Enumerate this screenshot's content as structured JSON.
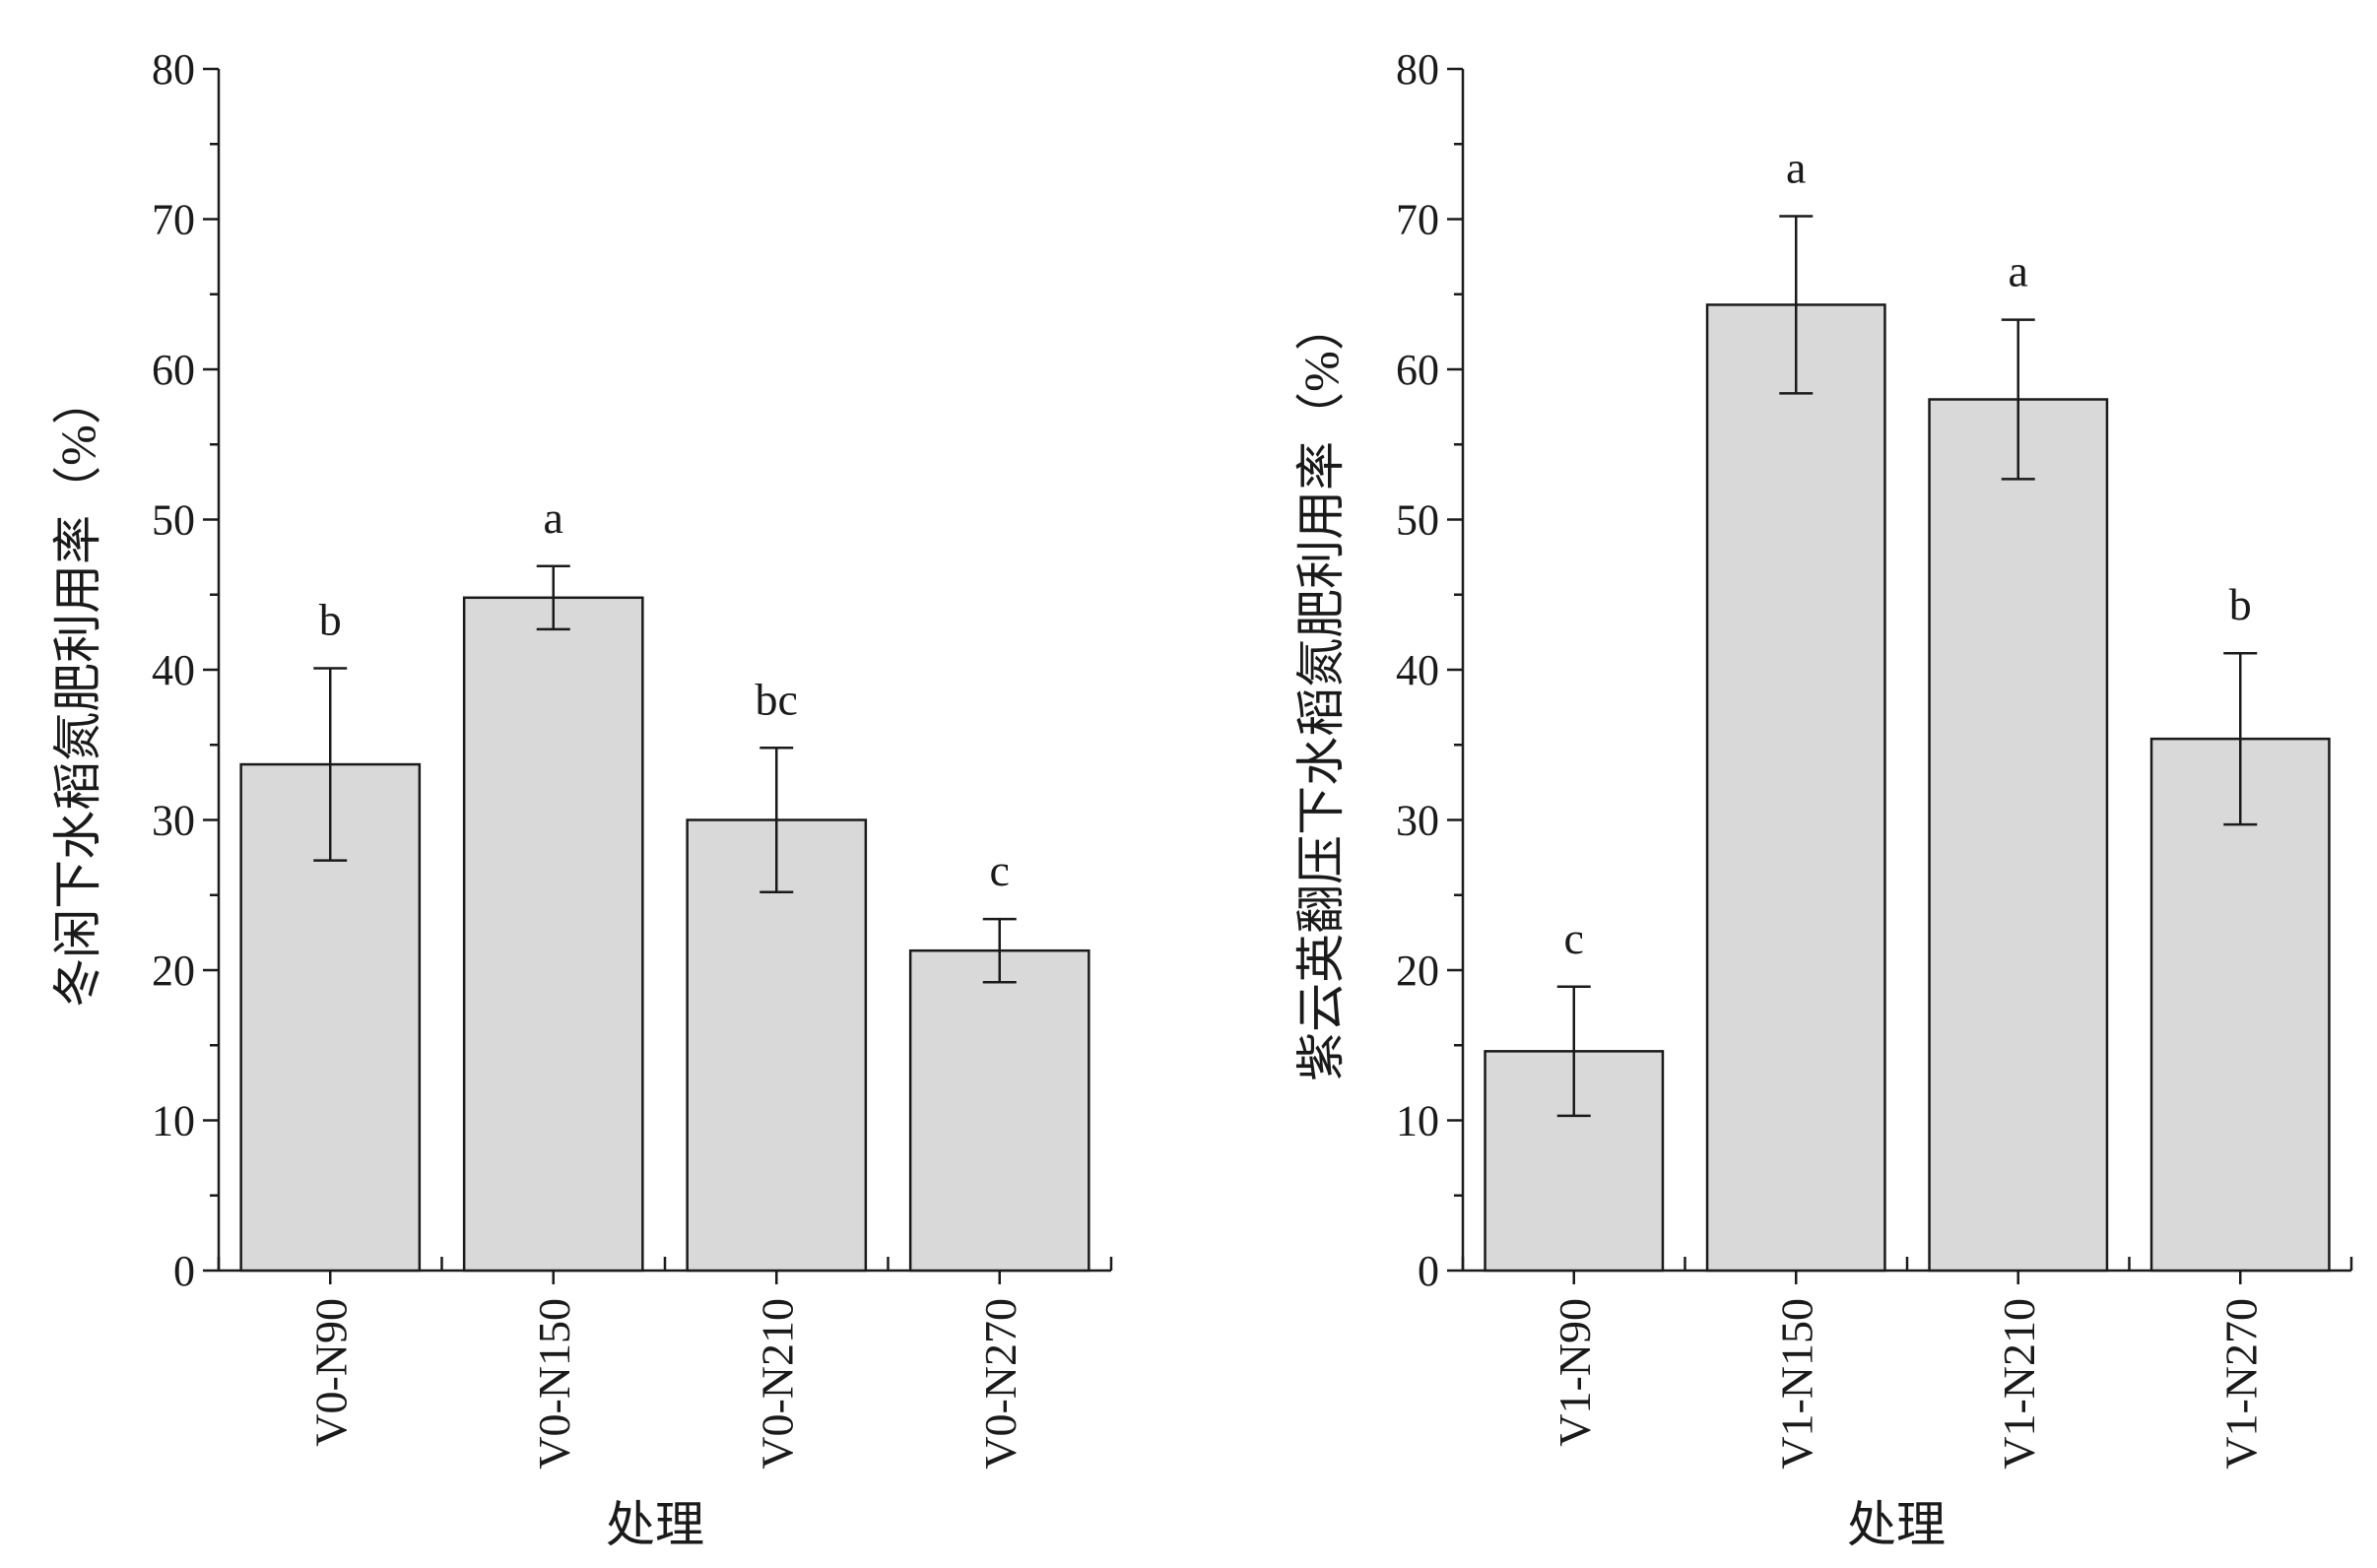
{
  "chart_data": [
    {
      "type": "bar",
      "title": "",
      "xlabel": "处理",
      "ylabel": "冬闲下水稻氮肥利用率（%）",
      "ylim": [
        0,
        80
      ],
      "yticks": [
        0,
        10,
        20,
        30,
        40,
        50,
        60,
        70,
        80
      ],
      "categories": [
        "V0-N90",
        "V0-N150",
        "V0-N210",
        "V0-N270"
      ],
      "values": [
        33.7,
        44.8,
        30.0,
        21.3
      ],
      "errors": [
        6.4,
        2.1,
        4.8,
        2.1
      ],
      "significance": [
        "b",
        "a",
        "bc",
        "c"
      ],
      "bar_color": "#d9d9d9",
      "grid": false
    },
    {
      "type": "bar",
      "title": "",
      "xlabel": "处理",
      "ylabel": "紫云英翻压下水稻氮肥利用率（%）",
      "ylim": [
        0,
        80
      ],
      "yticks": [
        0,
        10,
        20,
        30,
        40,
        50,
        60,
        70,
        80
      ],
      "categories": [
        "V1-N90",
        "V1-N150",
        "V1-N210",
        "V1-N270"
      ],
      "values": [
        14.6,
        64.3,
        58.0,
        35.4
      ],
      "errors": [
        4.3,
        5.9,
        5.3,
        5.7
      ],
      "significance": [
        "c",
        "a",
        "a",
        "b"
      ],
      "bar_color": "#d9d9d9",
      "grid": false
    }
  ]
}
